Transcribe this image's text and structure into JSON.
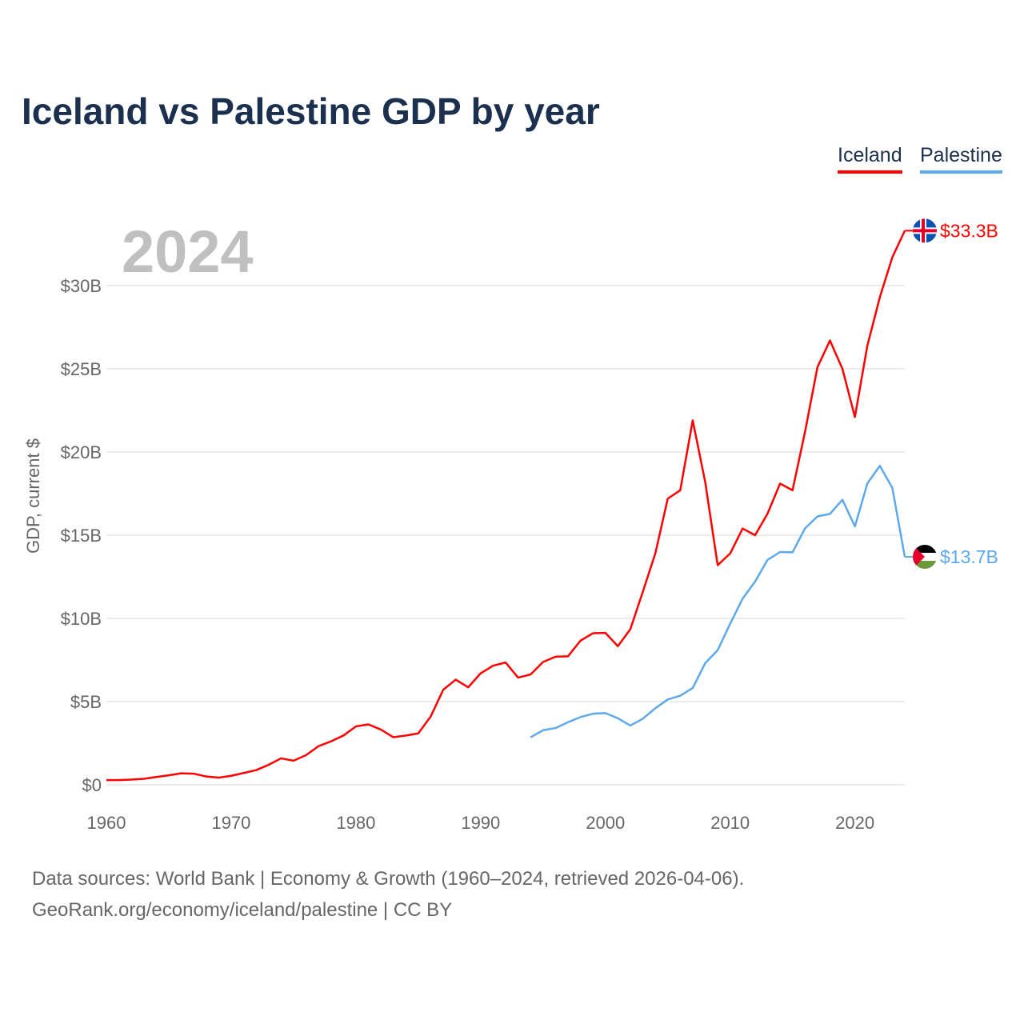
{
  "chart_data": {
    "type": "line",
    "title": "Iceland vs Palestine GDP by year",
    "current_year_label": "2024",
    "ylabel": "GDP, current $",
    "xlabel": "",
    "xlim": [
      1960,
      2024
    ],
    "ylim": [
      0,
      30
    ],
    "x_ticks": [
      1960,
      1970,
      1980,
      1990,
      2000,
      2010,
      2020
    ],
    "y_ticks": [
      0,
      5,
      10,
      15,
      20,
      25,
      30
    ],
    "y_tick_labels": [
      "$0",
      "$5B",
      "$10B",
      "$15B",
      "$20B",
      "$25B",
      "$30B"
    ],
    "grid": true,
    "legend_position": "top-right",
    "series": [
      {
        "name": "Iceland",
        "color": "#ff0000",
        "flag": "iceland-flag",
        "end_label": "$33.3B",
        "start_year": 1960,
        "values": [
          0.28,
          0.28,
          0.31,
          0.36,
          0.47,
          0.57,
          0.69,
          0.67,
          0.5,
          0.43,
          0.54,
          0.71,
          0.88,
          1.2,
          1.59,
          1.45,
          1.78,
          2.32,
          2.61,
          2.96,
          3.51,
          3.63,
          3.32,
          2.86,
          2.96,
          3.09,
          4.11,
          5.71,
          6.32,
          5.86,
          6.7,
          7.16,
          7.35,
          6.44,
          6.63,
          7.38,
          7.7,
          7.72,
          8.66,
          9.11,
          9.13,
          8.33,
          9.35,
          11.6,
          13.9,
          17.2,
          17.7,
          21.9,
          18.2,
          13.2,
          13.9,
          15.4,
          15.0,
          16.3,
          18.1,
          17.7,
          21.2,
          25.1,
          26.7,
          25.0,
          22.1,
          26.4,
          29.3,
          31.7,
          33.3
        ]
      },
      {
        "name": "Palestine",
        "color": "#5ea8ec",
        "flag": "palestine-flag",
        "end_label": "$13.7B",
        "start_year": 1994,
        "values": [
          2.85,
          3.28,
          3.41,
          3.76,
          4.07,
          4.27,
          4.31,
          4.0,
          3.56,
          3.97,
          4.6,
          5.13,
          5.35,
          5.82,
          7.31,
          8.09,
          9.68,
          11.19,
          12.21,
          13.52,
          13.99,
          13.97,
          15.41,
          16.13,
          16.28,
          17.13,
          15.53,
          18.11,
          19.17,
          17.84,
          13.7
        ]
      }
    ]
  },
  "footer": {
    "line1": "Data sources: World Bank | Economy & Growth (1960–2024, retrieved 2026-04-06).",
    "line2": "GeoRank.org/economy/iceland/palestine | CC BY"
  }
}
